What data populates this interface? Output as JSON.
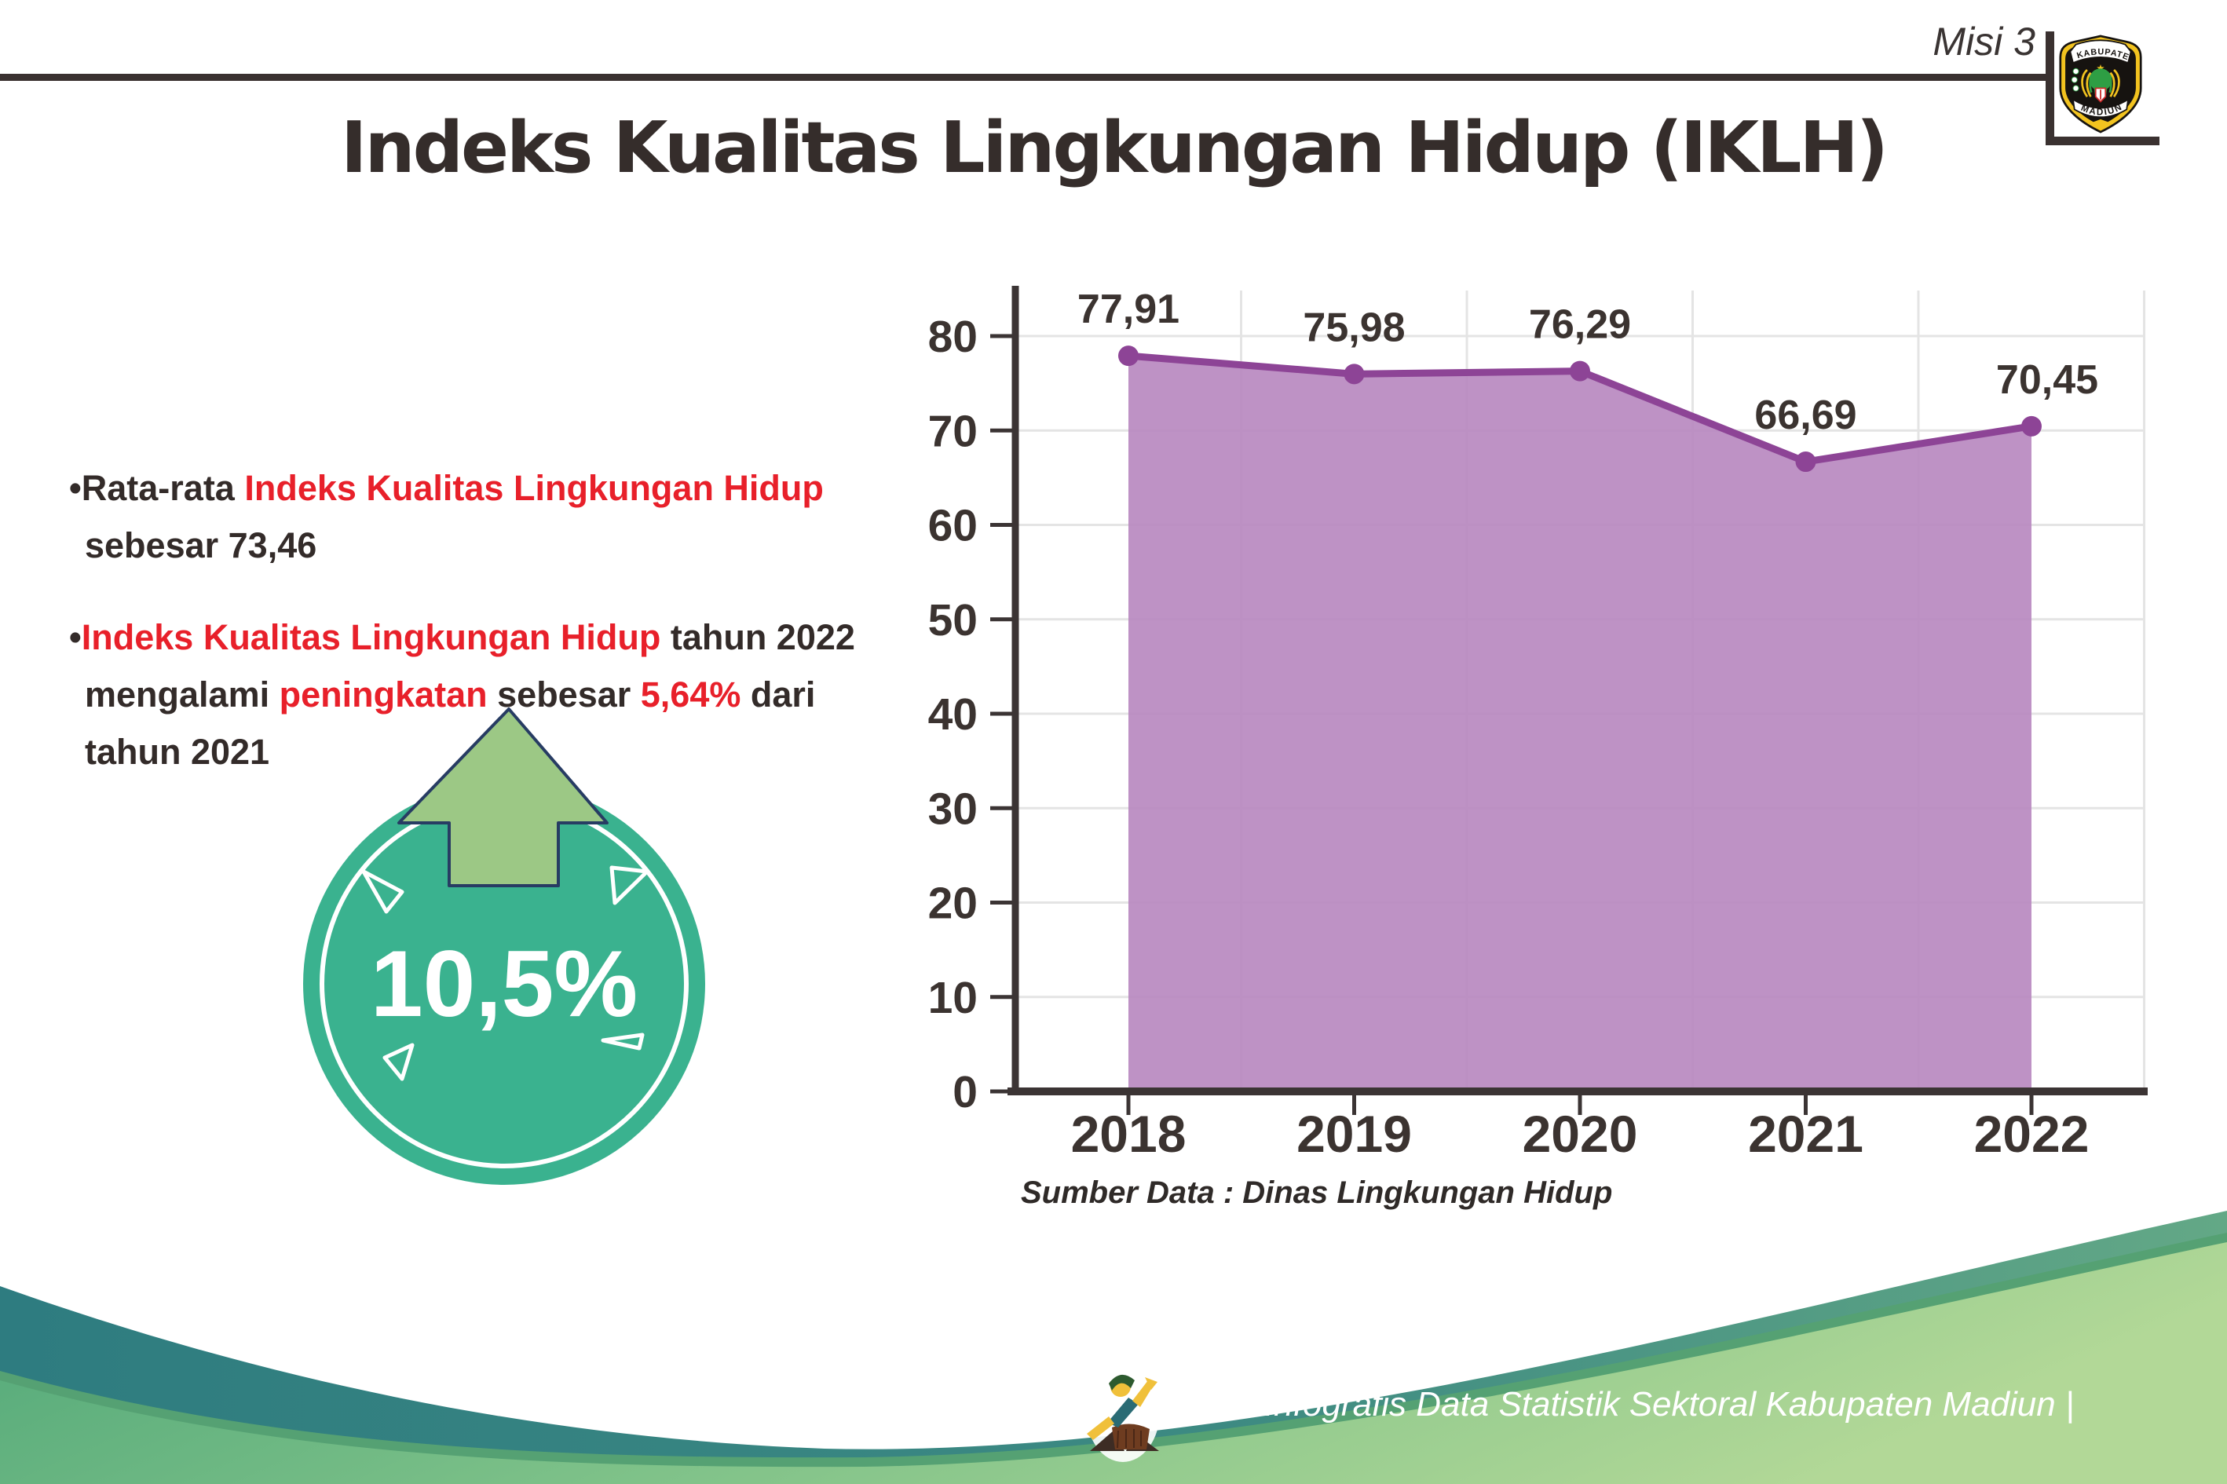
{
  "header": {
    "misi": "Misi 3",
    "title": "Indeks Kualitas Lingkungan Hidup (IKLH)",
    "logo": {
      "top": "KABUPATEN",
      "bottom": "MADIUN"
    }
  },
  "bullets": {
    "marker": "•",
    "b1": {
      "l1_black": "Rata-rata ",
      "l1_red": "Indeks Kualitas Lingkungan Hidup",
      "l2": "sebesar 73,46"
    },
    "b2": {
      "l1_red": "Indeks Kualitas Lingkungan Hidup",
      "l1_black": " tahun 2022",
      "l2_s1": "mengalami ",
      "l2_s2": "peningkatan",
      "l2_s3": " sebesar ",
      "l2_s4": "5,64%",
      "l2_s5": " dari",
      "l3": "tahun 2021"
    }
  },
  "badge": {
    "value": "10,5%"
  },
  "chart_data": {
    "type": "area",
    "categories": [
      "2018",
      "2019",
      "2020",
      "2021",
      "2022"
    ],
    "values": [
      77.91,
      75.98,
      76.29,
      66.69,
      70.45
    ],
    "point_labels": [
      "77,91",
      "75,98",
      "76,29",
      "66,69",
      "70,45"
    ],
    "ylim": [
      0,
      80
    ],
    "yticks": [
      0,
      10,
      20,
      30,
      40,
      50,
      60,
      70,
      80
    ],
    "grid": true,
    "legend": false,
    "source": "Sumber Data : Dinas Lingkungan Hidup",
    "colors": {
      "area_fill": "#b786bf",
      "line": "#8d4496",
      "marker": "#8d4496",
      "grid": "#e4e4e4",
      "axis": "#3b3434",
      "label": "#3b3330"
    }
  },
  "footer": {
    "credit": "Media Infografis Data Statistik Sektoral Kabupaten Madiun |"
  },
  "colors": {
    "accent_red": "#e8202a",
    "badge_teal": "#3ab28f",
    "arrow_green": "#9cc885",
    "wave_teal": "#2e7c80",
    "wave_green_light": "#a9d492",
    "text_dark": "#332b29"
  }
}
